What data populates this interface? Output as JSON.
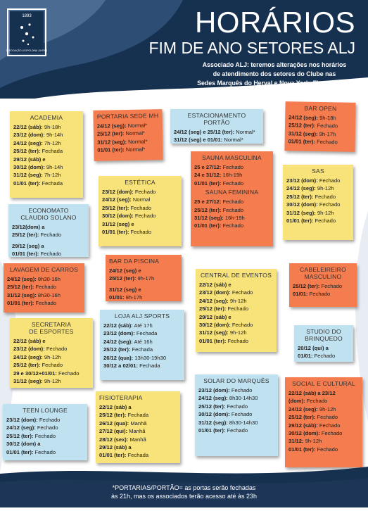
{
  "header": {
    "title": "HORÁRIOS",
    "subtitle": "FIM DE ANO SETORES ALJ",
    "logo_year": "1893",
    "logo_text": "ASSOCIAÇÃO LEOPOLDINA JUVENIL",
    "notice": [
      "Associado ALJ: teremos alterações nos horários",
      "de atendimento dos setores do Clube nas",
      "Sedes Marquês do Herval e Nova York. Fique atento!"
    ]
  },
  "footer": {
    "lines": [
      "*PORTARIAS/PORTÃO= as portas serão fechadas",
      "às 21h, mas os associados terão acesso até às 23h"
    ]
  },
  "colors": {
    "navy": "#1d3658",
    "yellow": "#f8e27a",
    "orange": "#f47c4e",
    "blue": "#bfe1f0"
  },
  "notes": {
    "academia": {
      "title": "ACADEMIA",
      "lines": [
        {
          "d": "22/12 (sáb):",
          "t": " 9h-18h"
        },
        {
          "d": "23/12 (dom):",
          "t": " 9h-14h"
        },
        {
          "d": "24/12 (seg):",
          "t": " 7h-12h"
        },
        {
          "d": "25/12 (ter):",
          "t": " Fechada"
        },
        {
          "d": "29/12 (sáb) e",
          "t": ""
        },
        {
          "d": "30/12 (dom):",
          "t": " 9h-14h"
        },
        {
          "d": "31/12 (seg):",
          "t": " 7h-12h"
        },
        {
          "d": "01/01 (ter):",
          "t": " Fechada"
        }
      ]
    },
    "portaria": {
      "title": "PORTARIA SEDE MH",
      "lines": [
        {
          "d": "24/12 (seg):",
          "t": " Normal*"
        },
        {
          "d": "25/12 (ter):",
          "t": " Normal*"
        },
        {
          "d": "31/12 (seg):",
          "t": " Normal*"
        },
        {
          "d": "01/01 (ter):",
          "t": " Normal*"
        }
      ]
    },
    "estacionamento": {
      "title": "ESTACIONAMENTO PORTÃO",
      "lines": [
        {
          "d": "24/12 (seg) e 25/12 (ter):",
          "t": " Normal*"
        },
        {
          "d": "31/12 (seg) e 01/01:",
          "t": " Normal*"
        }
      ]
    },
    "bar_open": {
      "title": "BAR OPEN",
      "lines": [
        {
          "d": "24/12 (seg):",
          "t": " 9h-18h"
        },
        {
          "d": "25/12 (ter):",
          "t": " Fechado"
        },
        {
          "d": "31/12 (seg):",
          "t": " 9h-17h"
        },
        {
          "d": "01/01 (ter):",
          "t": " Fechado"
        }
      ]
    },
    "sauna": {
      "title": "SAUNA MASCULINA",
      "title2": "SAUNA FEMININA",
      "lines": [
        {
          "d": "25 e 27/12:",
          "t": "   Fechado"
        },
        {
          "d": "24 e 31/12:",
          "t": " 16h-19h"
        },
        {
          "d": "01/01 (ter):",
          "t": " Fechado"
        }
      ],
      "lines2": [
        {
          "d": "25 e 27/12:",
          "t": "   Fechado"
        },
        {
          "d": "25/12 (ter):",
          "t": " Fechado"
        },
        {
          "d": "31/12 (seg):",
          "t": "   16h-19h"
        },
        {
          "d": "01/01 (ter):",
          "t": " Fechado"
        }
      ]
    },
    "estetica": {
      "title": "ESTÉTICA",
      "lines": [
        {
          "d": "23/12 (dom):",
          "t": " Fechado"
        },
        {
          "d": "24/12 (seg):",
          "t": " Normal"
        },
        {
          "d": "25/12 (ter):",
          "t": " Fechado"
        },
        {
          "d": "30/12 (dom):",
          "t": " Fechado"
        },
        {
          "d": "31/12 (seg) e",
          "t": ""
        },
        {
          "d": "01/01 (ter):",
          "t": " Fechado"
        }
      ]
    },
    "sas": {
      "title": "SAS",
      "lines": [
        {
          "d": "23/12 (dom):",
          "t": " Fechado"
        },
        {
          "d": "24/12 (seg):",
          "t": " 9h-12h"
        },
        {
          "d": "25/12 (ter):",
          "t": " Fechado"
        },
        {
          "d": "30/12 (dom):",
          "t": " Fechado"
        },
        {
          "d": "31/12 (seg):",
          "t": " 9h-12h"
        },
        {
          "d": "01/01 (ter):",
          "t": " Fechado"
        }
      ]
    },
    "economato": {
      "title": "ECONOMATO",
      "title2": "CLAUDIO SOLANO",
      "lines": [
        {
          "d": "23/12(dom) a",
          "t": ""
        },
        {
          "d": "25/12 (ter):",
          "t": " Fechado"
        },
        {
          "d": "",
          "t": ""
        },
        {
          "d": "29/12 (seg) a",
          "t": ""
        },
        {
          "d": "01/01 (ter):",
          "t": " Fechado"
        }
      ]
    },
    "bar_piscina": {
      "title": "BAR DA PISCINA",
      "lines": [
        {
          "d": "24/12 (seg) e",
          "t": ""
        },
        {
          "d": "25/12 (ter):",
          "t": " 9h-17h"
        },
        {
          "d": "",
          "t": ""
        },
        {
          "d": "31/12 (seg) e",
          "t": ""
        },
        {
          "d": "01/01:",
          "t": " 9h-17h"
        }
      ]
    },
    "lavagem": {
      "title": "LAVAGEM DE CARROS",
      "lines": [
        {
          "d": "24/12 (seg):",
          "t": " 8h30-16h"
        },
        {
          "d": "25/12 (ter):",
          "t": " Fechado"
        },
        {
          "d": "31/12 (seg):",
          "t": " 8h30-16h"
        },
        {
          "d": "01/01 (ter):",
          "t": " Fechado"
        }
      ]
    },
    "central": {
      "title": "CENTRAL DE EVENTOS",
      "lines": [
        {
          "d": "22/12 (sáb) e",
          "t": ""
        },
        {
          "d": "23/12 (dom):",
          "t": " Fechado"
        },
        {
          "d": "24/12 (seg):",
          "t": " 9h-12h"
        },
        {
          "d": "25/12 (ter):",
          "t": " Fechado"
        },
        {
          "d": "29/12 (sáb) e",
          "t": ""
        },
        {
          "d": "30/12 (dom):",
          "t": " Fechado"
        },
        {
          "d": "31/12 (seg):",
          "t": " 9h-12h"
        },
        {
          "d": "01/01 (ter):",
          "t": " Fechado"
        }
      ]
    },
    "cabeleireiro": {
      "title": "CABELEIREIRO",
      "title2": "MASCULINO",
      "lines": [
        {
          "d": "25/12 (ter):",
          "t": " Fechado"
        },
        {
          "d": "01/01:",
          "t": " Fechado"
        }
      ]
    },
    "secretaria": {
      "title": "SECRETARIA",
      "title2": "DE ESPORTES",
      "lines": [
        {
          "d": "22/12 (sáb) e",
          "t": ""
        },
        {
          "d": "23/12 (dom):",
          "t": " Fechado"
        },
        {
          "d": "24/12 (seg):",
          "t": " 9h-12h"
        },
        {
          "d": "25/12 (ter):",
          "t": " Fechado"
        },
        {
          "d": "29 e 30/12+01/01:",
          "t": " Fechado"
        },
        {
          "d": "31/12 (seg):",
          "t": " 9h-12h"
        }
      ]
    },
    "loja": {
      "title": "LOJA ALJ SPORTS",
      "lines": [
        {
          "d": "22/12 (sáb):",
          "t": " Até 17h"
        },
        {
          "d": "23/12 (dom):",
          "t": " Fechada"
        },
        {
          "d": "24/12 (seg):",
          "t": " Até 16h"
        },
        {
          "d": "25/12 (ter):",
          "t": " Fechada"
        },
        {
          "d": "26/12 (qua):",
          "t": " 13h30-19h30"
        },
        {
          "d": "30/12 a 02/01:",
          "t": " Fechada"
        }
      ]
    },
    "studio": {
      "title": "STUDIO DO",
      "title2": "BRINQUEDO",
      "lines": [
        {
          "d": "20/12 (qui) a",
          "t": ""
        },
        {
          "d": "01/01:",
          "t": " Fechado"
        }
      ]
    },
    "teen": {
      "title": "TEEN LOUNGE",
      "lines": [
        {
          "d": "23/12 (dom):",
          "t": " Fechado"
        },
        {
          "d": "24/12 (seg):",
          "t": " Fechado"
        },
        {
          "d": "25/12 (ter):",
          "t": " Fechado"
        },
        {
          "d": "30/12 (dom) a",
          "t": ""
        },
        {
          "d": "01/01 (ter):",
          "t": " Fechado"
        }
      ]
    },
    "fisioterapia": {
      "title": "FISIOTERAPIA",
      "lines": [
        {
          "d": "22/12 (sáb) a",
          "t": ""
        },
        {
          "d": "25/12 (ter):",
          "t": " Fechada"
        },
        {
          "d": "26/12 (qua):",
          "t": " Manhã"
        },
        {
          "d": "27/12 (qui):",
          "t": " Manhã"
        },
        {
          "d": "28/12 (sex):",
          "t": " Manhã"
        },
        {
          "d": "29/12 (sáb) a",
          "t": ""
        },
        {
          "d": "01/01 (ter):",
          "t": " Fechada"
        }
      ]
    },
    "solar": {
      "title": "SOLAR DO MARQUÊS",
      "lines": [
        {
          "d": "23/12 (dom):",
          "t": " Fechado"
        },
        {
          "d": "24/12 (seg):",
          "t": " 8h30-14h30"
        },
        {
          "d": "25/12 (ter):",
          "t": " Fechado"
        },
        {
          "d": "30/12 (dom):",
          "t": " Fechado"
        },
        {
          "d": "31/12 (seg):",
          "t": " 8h30-14h30"
        },
        {
          "d": "01/01 (ter):",
          "t": " Fechado"
        }
      ]
    },
    "social": {
      "title": "SOCIAL E CULTURAL",
      "lines": [
        {
          "d": "22/12 (sáb) a 23/12",
          "t": ""
        },
        {
          "d": "(dom):",
          "t": " Fechado"
        },
        {
          "d": "24/12 (seg):",
          "t": " 9h-12h"
        },
        {
          "d": "25/12 (ter):",
          "t": " Fechado"
        },
        {
          "d": "29/12 (sáb):",
          "t": " Fechado"
        },
        {
          "d": "30/12 (dom):",
          "t": " Fechado"
        },
        {
          "d": "31/12:",
          "t": " 9h-12h"
        },
        {
          "d": "01/01 (ter):",
          "t": " Fechado"
        }
      ]
    }
  }
}
